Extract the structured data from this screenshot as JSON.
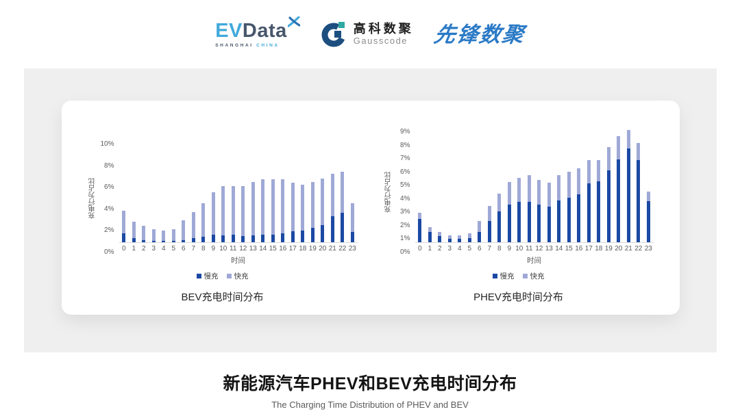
{
  "header": {
    "evdata_logo": {
      "ev": "EV",
      "data": "Data",
      "sub_left": "SHANGHAI",
      "sub_right": "CHINA"
    },
    "gausscode_logo": {
      "cn": "高科数聚",
      "en": "Gausscode"
    },
    "pioneer_logo": {
      "text": "先锋数聚"
    }
  },
  "colors": {
    "slow_charge": "#1b49a3",
    "fast_charge": "#9fa9d6",
    "band_background": "#efefef",
    "axis_text": "#595959",
    "baseline": "#d9d9d9"
  },
  "footer": {
    "title": "新能源汽车PHEV和BEV充电时间分布",
    "subtitle": "The Charging Time Distribution of PHEV and BEV"
  },
  "chart_data": [
    {
      "type": "bar",
      "stacked": true,
      "title": "BEV充电时间分布",
      "xlabel": "时间",
      "ylabel": "充电行为占比",
      "ymax": 10,
      "y_ticks": [
        "0%",
        "2%",
        "4%",
        "6%",
        "8%",
        "10%"
      ],
      "grid": false,
      "legend_position": "bottom",
      "categories": [
        "0",
        "1",
        "2",
        "3",
        "4",
        "5",
        "6",
        "7",
        "8",
        "9",
        "10",
        "11",
        "12",
        "13",
        "14",
        "15",
        "16",
        "17",
        "18",
        "19",
        "20",
        "21",
        "22",
        "23"
      ],
      "series": [
        {
          "name": "慢充",
          "color": "#1b49a3",
          "values": [
            0.8,
            0.35,
            0.2,
            0.1,
            0.1,
            0.1,
            0.2,
            0.35,
            0.5,
            0.7,
            0.65,
            0.7,
            0.6,
            0.65,
            0.7,
            0.7,
            0.8,
            1.0,
            1.1,
            1.3,
            1.6,
            2.4,
            2.75,
            0.95
          ]
        },
        {
          "name": "快充",
          "color": "#9fa9d6",
          "values": [
            2.1,
            1.55,
            1.3,
            1.1,
            1.0,
            1.1,
            1.8,
            2.45,
            3.1,
            3.9,
            4.55,
            4.5,
            4.6,
            4.95,
            5.1,
            5.1,
            5.0,
            4.5,
            4.2,
            4.3,
            4.3,
            3.9,
            3.75,
            2.65
          ]
        }
      ]
    },
    {
      "type": "bar",
      "stacked": true,
      "title": "PHEV充电时间分布",
      "xlabel": "时间",
      "ylabel": "充电行为占比",
      "ymax": 9,
      "y_ticks": [
        "0%",
        "1%",
        "2%",
        "3%",
        "4%",
        "5%",
        "6%",
        "7%",
        "8%",
        "9%"
      ],
      "grid": false,
      "legend_position": "bottom",
      "categories": [
        "0",
        "1",
        "2",
        "3",
        "4",
        "5",
        "6",
        "7",
        "8",
        "9",
        "10",
        "11",
        "12",
        "13",
        "14",
        "15",
        "16",
        "17",
        "18",
        "19",
        "20",
        "21",
        "22",
        "23"
      ],
      "series": [
        {
          "name": "慢充",
          "color": "#1b49a3",
          "values": [
            1.75,
            0.75,
            0.45,
            0.25,
            0.25,
            0.3,
            0.75,
            1.6,
            2.3,
            2.8,
            3.0,
            3.0,
            2.8,
            2.65,
            3.1,
            3.3,
            3.6,
            4.4,
            4.55,
            5.35,
            6.2,
            7.0,
            6.15,
            3.05
          ]
        },
        {
          "name": "快充",
          "color": "#9fa9d6",
          "values": [
            0.45,
            0.4,
            0.3,
            0.25,
            0.25,
            0.35,
            0.85,
            1.1,
            1.35,
            1.7,
            1.8,
            2.0,
            1.85,
            1.8,
            1.9,
            1.95,
            1.9,
            1.75,
            1.6,
            1.75,
            1.75,
            1.4,
            1.25,
            0.75
          ]
        }
      ]
    }
  ]
}
